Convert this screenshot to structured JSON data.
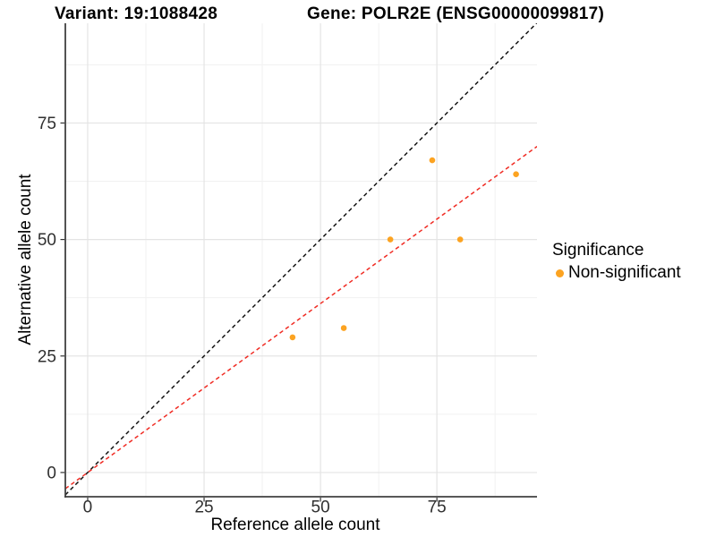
{
  "header": {
    "variant_title": "Variant: 19:1088428",
    "gene_title": "Gene: POLR2E (ENSG00000099817)"
  },
  "legend": {
    "title": "Significance",
    "items": [
      {
        "label": "Non-significant",
        "color": "#FCA321",
        "marker": "circle-icon"
      }
    ]
  },
  "chart_data": {
    "type": "scatter",
    "title": "Variant: 19:1088428 | Gene: POLR2E (ENSG00000099817)",
    "xlabel": "Reference allele count",
    "ylabel": "Alternative allele count",
    "xlim": [
      -4.8,
      96.5
    ],
    "ylim": [
      -5.2,
      96.4
    ],
    "x_ticks": [
      0,
      25,
      50,
      75
    ],
    "y_ticks": [
      0,
      25,
      50,
      75
    ],
    "x_minor_ticks": [
      12.5,
      37.5,
      62.5,
      87.5
    ],
    "y_minor_ticks": [
      12.5,
      37.5,
      62.5,
      87.5
    ],
    "grid": true,
    "legend_position": "right",
    "series": [
      {
        "name": "Non-significant",
        "color": "#FCA321",
        "marker_radius": 3.3,
        "points": [
          {
            "x": 44,
            "y": 29
          },
          {
            "x": 55,
            "y": 31
          },
          {
            "x": 65,
            "y": 50
          },
          {
            "x": 80,
            "y": 50
          },
          {
            "x": 74,
            "y": 67
          },
          {
            "x": 92,
            "y": 64
          }
        ]
      }
    ],
    "lines": [
      {
        "name": "identity-line",
        "slope": 1.0,
        "intercept": 0,
        "color": "#141414",
        "style": "dashed"
      },
      {
        "name": "fitted-ratio-line",
        "slope": 0.725,
        "intercept": 0,
        "color": "#F02C24",
        "style": "dashed"
      }
    ],
    "style": {
      "grid_major_color": "#E4E4E4",
      "grid_minor_color": "#F1F1F1",
      "axis_line_color": "#404040",
      "tick_color": "#333333",
      "tick_label_color": "#303030"
    }
  }
}
